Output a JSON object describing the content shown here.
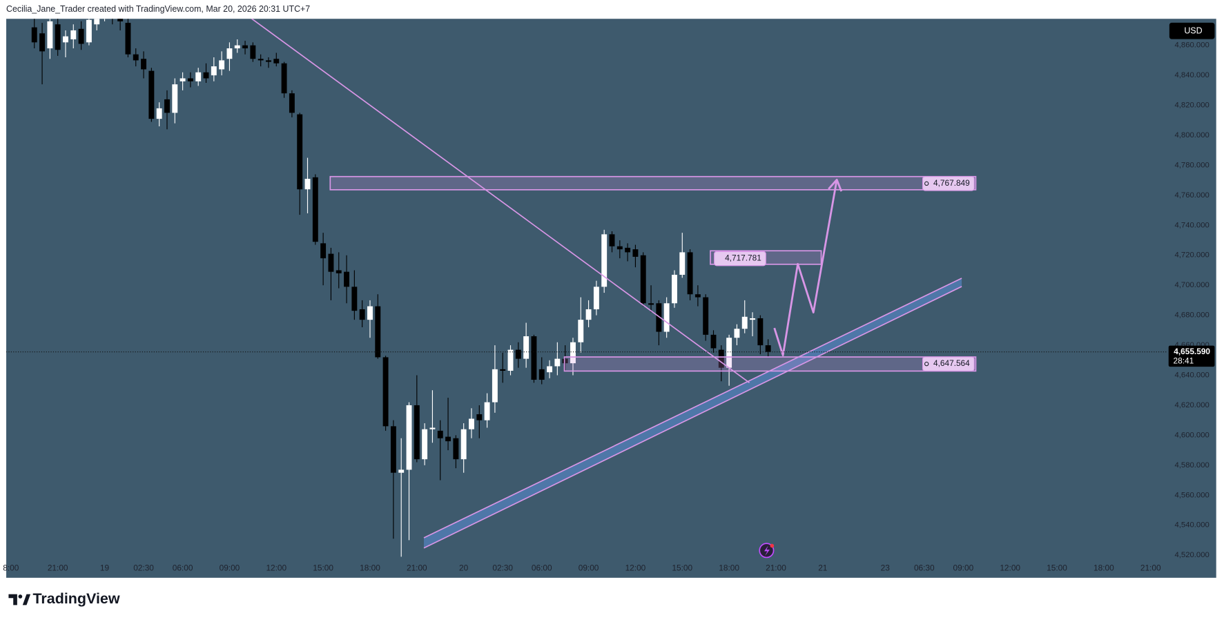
{
  "header": "Cecilia_Jane_Trader created with TradingView.com, Mar 20, 2026 20:31 UTC+7",
  "brand": "TradingView",
  "chart_data": {
    "type": "candlestick",
    "currency": "USD",
    "up_color": "#ffffff",
    "down_color": "#000000",
    "background": "#3e5a6d",
    "grid": false,
    "candles": {
      "open": [
        4872,
        4868,
        4858,
        4874,
        4862,
        4864,
        4871,
        4862,
        4874,
        4882,
        4885,
        4880,
        4875,
        4854,
        4851,
        4843,
        4811,
        4824,
        4815,
        4836,
        4838,
        4836,
        4842,
        4840,
        4844,
        4851,
        4858,
        4860,
        4860,
        4851,
        4850,
        4851,
        4848,
        4828,
        4814,
        4764,
        4772,
        4728,
        4721,
        4710,
        4709,
        4699,
        4684,
        4677,
        4686,
        4652,
        4606,
        4575,
        4577,
        4620,
        4584,
        4604,
        4603,
        4599,
        4598,
        4584,
        4604,
        4614,
        4610,
        4622,
        4644,
        4643,
        4657,
        4651,
        4666,
        4644,
        4642,
        4646,
        4651,
        4648,
        4662,
        4677,
        4684,
        4699,
        4734,
        4726,
        4725,
        4724,
        4720,
        4688,
        4688,
        4669,
        4688,
        4707,
        4722,
        4694,
        4692,
        4667,
        4657,
        4645,
        4665,
        4671,
        4677,
        4678,
        4660
      ],
      "high": [
        4878,
        4875,
        4879,
        4878,
        4870,
        4874,
        4876,
        4880,
        4882,
        4890,
        4888,
        4884,
        4880,
        4858,
        4856,
        4845,
        4822,
        4830,
        4838,
        4842,
        4842,
        4845,
        4848,
        4852,
        4856,
        4862,
        4864,
        4863,
        4862,
        4854,
        4852,
        4855,
        4849,
        4830,
        4815,
        4785,
        4774,
        4735,
        4725,
        4722,
        4720,
        4710,
        4690,
        4690,
        4694,
        4653,
        4610,
        4598,
        4622,
        4640,
        4608,
        4630,
        4610,
        4625,
        4600,
        4608,
        4618,
        4620,
        4628,
        4660,
        4655,
        4660,
        4662,
        4675,
        4667,
        4652,
        4650,
        4662,
        4660,
        4665,
        4692,
        4690,
        4703,
        4737,
        4736,
        4730,
        4728,
        4727,
        4722,
        4700,
        4690,
        4692,
        4710,
        4735,
        4724,
        4700,
        4694,
        4670,
        4660,
        4667,
        4674,
        4690,
        4682,
        4680,
        4664
      ],
      "low": [
        4858,
        4834,
        4851,
        4853,
        4852,
        4858,
        4857,
        4860,
        4870,
        4876,
        4874,
        4870,
        4852,
        4846,
        4838,
        4809,
        4806,
        4804,
        4808,
        4830,
        4832,
        4833,
        4835,
        4836,
        4840,
        4843,
        4855,
        4854,
        4849,
        4846,
        4845,
        4846,
        4825,
        4812,
        4747,
        4748,
        4727,
        4700,
        4690,
        4698,
        4688,
        4677,
        4672,
        4665,
        4651,
        4603,
        4531,
        4519,
        4530,
        4582,
        4580,
        4595,
        4570,
        4590,
        4578,
        4575,
        4598,
        4598,
        4605,
        4615,
        4635,
        4640,
        4645,
        4645,
        4635,
        4634,
        4638,
        4640,
        4643,
        4640,
        4655,
        4672,
        4680,
        4695,
        4722,
        4718,
        4716,
        4712,
        4686,
        4682,
        4660,
        4665,
        4685,
        4705,
        4690,
        4686,
        4663,
        4655,
        4636,
        4633,
        4660,
        4668,
        4666,
        4654,
        4652
      ],
      "close": [
        4862,
        4856,
        4876,
        4857,
        4866,
        4870,
        4861,
        4877,
        4879,
        4885,
        4880,
        4876,
        4854,
        4850,
        4844,
        4811,
        4818,
        4815,
        4834,
        4838,
        4836,
        4842,
        4838,
        4846,
        4850,
        4858,
        4860,
        4858,
        4851,
        4850,
        4849,
        4848,
        4828,
        4815,
        4764,
        4771,
        4729,
        4718,
        4709,
        4708,
        4699,
        4683,
        4677,
        4686,
        4652,
        4606,
        4575,
        4577,
        4620,
        4584,
        4604,
        4605,
        4598,
        4596,
        4584,
        4604,
        4611,
        4610,
        4622,
        4644,
        4643,
        4657,
        4651,
        4666,
        4637,
        4637,
        4646,
        4651,
        4648,
        4662,
        4677,
        4684,
        4699,
        4734,
        4726,
        4724,
        4722,
        4719,
        4688,
        4687,
        4669,
        4688,
        4707,
        4722,
        4694,
        4692,
        4667,
        4658,
        4645,
        4665,
        4671,
        4679,
        4678,
        4660,
        4655.59
      ]
    },
    "xlim": [
      -3.6,
      145.1
    ],
    "xticks": [
      {
        "value": -3,
        "label": "8:00"
      },
      {
        "value": 3,
        "label": "21:00"
      },
      {
        "value": 9,
        "label": "19"
      },
      {
        "value": 14,
        "label": "02:30"
      },
      {
        "value": 19,
        "label": "06:00"
      },
      {
        "value": 25,
        "label": "09:00"
      },
      {
        "value": 31,
        "label": "12:00"
      },
      {
        "value": 37,
        "label": "15:00"
      },
      {
        "value": 43,
        "label": "18:00"
      },
      {
        "value": 49,
        "label": "21:00"
      },
      {
        "value": 55,
        "label": "20"
      },
      {
        "value": 60,
        "label": "02:30"
      },
      {
        "value": 65,
        "label": "06:00"
      },
      {
        "value": 71,
        "label": "09:00"
      },
      {
        "value": 77,
        "label": "12:00"
      },
      {
        "value": 83,
        "label": "15:00"
      },
      {
        "value": 89,
        "label": "18:00"
      },
      {
        "value": 95,
        "label": "21:00"
      },
      {
        "value": 101,
        "label": "21"
      },
      {
        "value": 109,
        "label": "23"
      },
      {
        "value": 114,
        "label": "06:30"
      },
      {
        "value": 119,
        "label": "09:00"
      },
      {
        "value": 125,
        "label": "12:00"
      },
      {
        "value": 131,
        "label": "15:00"
      },
      {
        "value": 137,
        "label": "18:00"
      },
      {
        "value": 143,
        "label": "21:00"
      }
    ],
    "ylim": [
      4516.4,
      4877.7
    ],
    "yticks": [
      {
        "value": 4520,
        "label": "4,520.000"
      },
      {
        "value": 4540,
        "label": "4,540.000"
      },
      {
        "value": 4560,
        "label": "4,560.000"
      },
      {
        "value": 4580,
        "label": "4,580.000"
      },
      {
        "value": 4600,
        "label": "4,600.000"
      },
      {
        "value": 4620,
        "label": "4,620.000"
      },
      {
        "value": 4640,
        "label": "4,640.000"
      },
      {
        "value": 4660,
        "label": "4,660.000"
      },
      {
        "value": 4680,
        "label": "4,680.000"
      },
      {
        "value": 4700,
        "label": "4,700.000"
      },
      {
        "value": 4720,
        "label": "4,720.000"
      },
      {
        "value": 4740,
        "label": "4,740.000"
      },
      {
        "value": 4760,
        "label": "4,760.000"
      },
      {
        "value": 4780,
        "label": "4,780.000"
      },
      {
        "value": 4800,
        "label": "4,800.000"
      },
      {
        "value": 4820,
        "label": "4,820.000"
      },
      {
        "value": 4840,
        "label": "4,840.000"
      },
      {
        "value": 4860,
        "label": "4,860.000"
      }
    ],
    "last_price": {
      "value": 4655.59,
      "label": "4,655.590"
    },
    "countdown": "28:41",
    "drawing_color": "#d896e6",
    "zones": [
      {
        "x": [
          37.9,
          120.6
        ],
        "y": [
          4763.7,
          4772.5
        ],
        "price": {
          "value": 4767.849,
          "label": "4,767.849"
        },
        "label_at": "end"
      },
      {
        "x": [
          86.6,
          100.8
        ],
        "y": [
          4714,
          4723
        ],
        "price": {
          "value": 4717.781,
          "label": "4,717.781"
        },
        "label_at": "start"
      },
      {
        "x": [
          67.9,
          120.6
        ],
        "y": [
          4642.8,
          4652.2
        ],
        "price": {
          "value": 4647.564,
          "label": "4,647.564"
        },
        "label_at": "end"
      }
    ],
    "trendline": {
      "points": [
        [
          27.6,
          4878.7
        ],
        [
          91.6,
          4635
        ]
      ]
    },
    "channel": {
      "fill_color": "#5b8fd9",
      "upper": [
        [
          49.9,
          4531.6
        ],
        [
          118.8,
          4704.7
        ]
      ],
      "lower": [
        [
          49.9,
          4524.8
        ],
        [
          118.8,
          4699.2
        ]
      ]
    },
    "projection": {
      "points": [
        [
          94.8,
          4671.5
        ],
        [
          95.9,
          4653.3
        ],
        [
          97.8,
          4714.2
        ],
        [
          99.8,
          4681.9
        ],
        [
          102.8,
          4770.4
        ]
      ],
      "arrow": true
    }
  }
}
